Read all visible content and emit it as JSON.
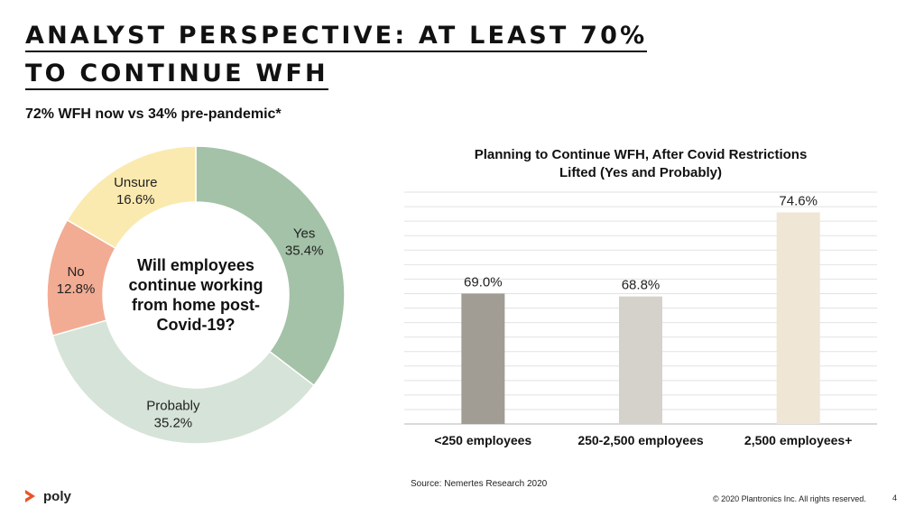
{
  "slide": {
    "title_line1": "ANALYST PERSPECTIVE: AT LEAST 70%",
    "title_line2": "TO CONTINUE WFH",
    "subtitle": "72% WFH now vs 34% pre-pandemic*"
  },
  "chart_data": [
    {
      "type": "pie",
      "title": "Will employees continue working from home post-Covid-19?",
      "center_lines": [
        "Will employees",
        "continue working",
        "from home post-",
        "Covid-19?"
      ],
      "slices": [
        {
          "label": "Yes",
          "value": 35.4,
          "display": "35.4%",
          "color": "#a3c2a7"
        },
        {
          "label": "Probably",
          "value": 35.2,
          "display": "35.2%",
          "color": "#d6e3d8"
        },
        {
          "label": "No",
          "value": 12.8,
          "display": "12.8%",
          "color": "#f2ac93"
        },
        {
          "label": "Unsure",
          "value": 16.6,
          "display": "16.6%",
          "color": "#faeaaf"
        }
      ]
    },
    {
      "type": "bar",
      "title_lines": [
        "Planning to Continue WFH, After Covid Restrictions",
        "Lifted (Yes and Probably)"
      ],
      "categories": [
        "<250 employees",
        "250-2,500 employees",
        "2,500 employees+"
      ],
      "values": [
        69.0,
        68.8,
        74.6
      ],
      "value_labels": [
        "69.0%",
        "68.8%",
        "74.6%"
      ],
      "colors": [
        "#a19c94",
        "#d5d2cb",
        "#efe6d5"
      ],
      "ylim": [
        60,
        76
      ],
      "grid_step": 1,
      "grid": true,
      "xlabel": "",
      "ylabel": ""
    }
  ],
  "footer": {
    "source": "Source: Nemertes Research 2020",
    "logo_text": "poly",
    "logo_color": "#e8542a",
    "copyright": "© 2020 Plantronics Inc. All rights reserved.",
    "page_number": "4"
  }
}
